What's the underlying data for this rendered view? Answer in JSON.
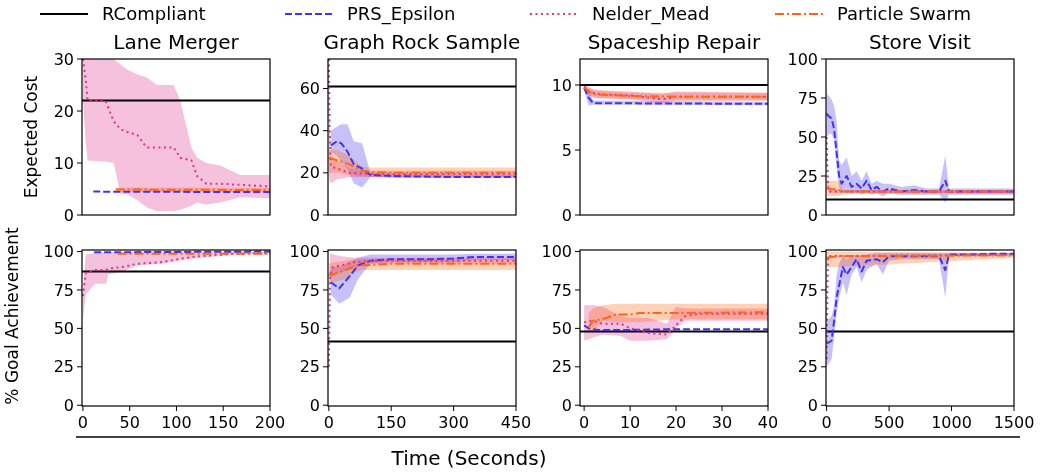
{
  "chart_data": [
    {
      "type": "line",
      "title": "Lane Merger",
      "ylabel": "Expected Cost",
      "legend": "top",
      "xlim": [
        -1,
        200
      ],
      "ylim": [
        0,
        30
      ],
      "yticks": [
        0,
        10,
        20,
        30
      ],
      "tick_labels": "y",
      "series": [
        {
          "name": "RCompliant",
          "color": "#000000",
          "line_style": "solid",
          "x": [
            -1,
            200
          ],
          "values": [
            22,
            22
          ]
        },
        {
          "name": "PRS_Epsilon",
          "color": "#4433ee",
          "line_style": "dashed",
          "x": [
            11,
            200
          ],
          "values": [
            4.5,
            4.4
          ]
        },
        {
          "name": "Nelder_Mead",
          "color": "#e0338a",
          "line_style": "dotted",
          "x": [
            0,
            3,
            5,
            24,
            33,
            40,
            47,
            58,
            68,
            79,
            97,
            104,
            116,
            122,
            132,
            147,
            168,
            200
          ],
          "values": [
            30,
            26,
            22,
            22,
            18,
            16.5,
            16,
            15.4,
            13,
            13,
            13,
            11,
            10.5,
            7.5,
            6,
            6,
            5.8,
            5.5
          ],
          "upper": [
            30,
            30,
            30,
            30,
            30,
            29,
            28,
            27,
            26.5,
            25,
            25,
            22,
            13,
            11,
            10,
            9.5,
            7.7,
            7.7
          ],
          "lower": [
            22,
            14,
            10.5,
            10.3,
            10,
            4,
            4,
            2.9,
            1.5,
            0.7,
            0.7,
            1,
            1.8,
            2.4,
            2,
            2.4,
            3.4,
            3.2
          ]
        },
        {
          "name": "Particle Swarm",
          "color": "#ff6611",
          "line_style": "dashdot",
          "x": [
            35,
            200
          ],
          "values": [
            4.9,
            4.8
          ],
          "upper": [
            5.3,
            5.2
          ],
          "lower": [
            4.4,
            4.4
          ]
        }
      ]
    },
    {
      "type": "line",
      "title": "Graph Rock Sample",
      "xlim": [
        -2,
        450
      ],
      "ylim": [
        0,
        74
      ],
      "yticks": [
        0,
        20,
        40,
        60
      ],
      "tick_labels": "y",
      "series": [
        {
          "color": "#000000",
          "line_style": "solid",
          "x": [
            -2,
            450
          ],
          "values": [
            61,
            61
          ]
        },
        {
          "color": "#4433ee",
          "line_style": "dashed",
          "x": [
            5,
            20,
            30,
            45,
            60,
            80,
            100,
            150,
            300,
            450
          ],
          "values": [
            33,
            35,
            34,
            30,
            24,
            22,
            19,
            18.5,
            18,
            18
          ],
          "upper": [
            40,
            42,
            43,
            43,
            35,
            34,
            20,
            19.5,
            19,
            19
          ],
          "lower": [
            30,
            28,
            25,
            22,
            15,
            13,
            18,
            17.5,
            17.5,
            17.5
          ]
        },
        {
          "color": "#e0338a",
          "line_style": "dotted",
          "x": [
            0,
            2,
            5,
            20,
            50,
            100,
            450
          ],
          "values": [
            74,
            40,
            23,
            22,
            20,
            19.5,
            19.5
          ],
          "upper": [
            74,
            45,
            28,
            26,
            22,
            21,
            21
          ],
          "lower": [
            20,
            16,
            15,
            17,
            18,
            18,
            18
          ]
        },
        {
          "color": "#ff6611",
          "line_style": "dashdot",
          "x": [
            0,
            20,
            50,
            80,
            100,
            150,
            450
          ],
          "values": [
            27,
            26,
            24,
            21,
            20.5,
            20,
            20
          ],
          "upper": [
            31,
            31,
            28,
            23,
            22.5,
            22.5,
            22.5
          ],
          "lower": [
            20,
            20,
            19,
            18.5,
            18,
            18,
            18
          ]
        }
      ]
    },
    {
      "type": "line",
      "title": "Spaceship Repair",
      "xlim": [
        -0.9,
        40
      ],
      "ylim": [
        0,
        12
      ],
      "yticks": [
        0,
        5,
        10
      ],
      "tick_labels": "y",
      "series": [
        {
          "color": "#000000",
          "line_style": "solid",
          "x": [
            -0.9,
            40
          ],
          "values": [
            10,
            10
          ]
        },
        {
          "color": "#4433ee",
          "line_style": "dashed",
          "x": [
            0,
            1,
            2,
            40
          ],
          "values": [
            9.8,
            9,
            8.6,
            8.55
          ],
          "upper": [
            9.9,
            9.6,
            8.8,
            8.7
          ],
          "lower": [
            9.6,
            8.4,
            8.5,
            8.45
          ]
        },
        {
          "color": "#e0338a",
          "line_style": "dotted",
          "x": [
            0,
            1,
            3,
            10,
            17,
            20,
            40
          ],
          "values": [
            9.9,
            9.5,
            9.3,
            9.2,
            8.9,
            9.1,
            9.1
          ],
          "upper": [
            10,
            9.8,
            9.6,
            9.5,
            9.3,
            9.5,
            9.4
          ],
          "lower": [
            9.7,
            9.2,
            9,
            8.9,
            8.6,
            8.8,
            8.8
          ]
        },
        {
          "color": "#ff6611",
          "line_style": "dashdot",
          "x": [
            0,
            2,
            10,
            20,
            40
          ],
          "values": [
            9.8,
            9.3,
            9.15,
            9.1,
            9.1
          ],
          "upper": [
            10,
            9.6,
            9.4,
            9.4,
            9.4
          ],
          "lower": [
            9.5,
            9,
            8.9,
            8.8,
            8.8
          ]
        }
      ]
    },
    {
      "type": "line",
      "title": "Store Visit",
      "xlim": [
        -5,
        1500
      ],
      "ylim": [
        0,
        100
      ],
      "yticks": [
        0,
        25,
        50,
        75,
        100
      ],
      "tick_labels": "y",
      "series": [
        {
          "color": "#000000",
          "line_style": "solid",
          "x": [
            -5,
            1500
          ],
          "values": [
            10,
            10
          ]
        },
        {
          "color": "#4433ee",
          "line_style": "dashed",
          "x": [
            0,
            20,
            40,
            60,
            80,
            100,
            120,
            160,
            200,
            240,
            280,
            320,
            360,
            400,
            450,
            500,
            600,
            700,
            800,
            900,
            950,
            980,
            1100,
            1300,
            1500
          ],
          "values": [
            65,
            63,
            62,
            55,
            40,
            25,
            20,
            25,
            18,
            20,
            17,
            22,
            16,
            18,
            15,
            17,
            15,
            16,
            15,
            15,
            22,
            15,
            15,
            15,
            15
          ],
          "upper": [
            78,
            76,
            74,
            70,
            60,
            35,
            32,
            37,
            25,
            28,
            22,
            28,
            20,
            22,
            20,
            20,
            18,
            19,
            17,
            17,
            38,
            17,
            17,
            17,
            17
          ],
          "lower": [
            50,
            52,
            52,
            48,
            30,
            18,
            15,
            16,
            14,
            15,
            13,
            15,
            13,
            14,
            12,
            14,
            13,
            13,
            13,
            13,
            8,
            13,
            13,
            13,
            13
          ]
        },
        {
          "color": "#e0338a",
          "line_style": "dotted",
          "x": [
            0,
            10,
            20,
            1500
          ],
          "values": [
            50,
            20,
            15,
            15
          ],
          "upper": [
            55,
            24,
            16,
            16
          ],
          "lower": [
            45,
            16,
            14,
            14
          ]
        },
        {
          "color": "#ff6611",
          "line_style": "dashdot",
          "x": [
            0,
            100,
            130,
            1500
          ],
          "values": [
            17,
            16,
            15,
            15
          ],
          "upper": [
            22,
            22,
            16,
            16
          ],
          "lower": [
            12,
            12,
            14,
            14
          ]
        }
      ]
    },
    {
      "type": "line",
      "ylabel": "% Goal Achievement",
      "xlim": [
        -1,
        200
      ],
      "xticks": [
        0,
        50,
        100,
        150,
        200
      ],
      "ylim": [
        -0.5,
        101
      ],
      "yticks": [
        0,
        25,
        50,
        75,
        100
      ],
      "series": [
        {
          "color": "#000000",
          "line_style": "solid",
          "x": [
            -1,
            200
          ],
          "values": [
            87,
            87
          ]
        },
        {
          "color": "#4433ee",
          "line_style": "dashed",
          "x": [
            12,
            200
          ],
          "values": [
            99.5,
            100
          ]
        },
        {
          "color": "#e0338a",
          "line_style": "dotted",
          "x": [
            0,
            3,
            13,
            25,
            27,
            43,
            58,
            83,
            111,
            125,
            140,
            161,
            200
          ],
          "values": [
            71,
            86,
            88,
            88,
            89,
            90,
            92,
            93,
            96,
            97,
            97.5,
            98.5,
            99
          ],
          "upper": [
            75,
            98,
            99,
            99.5,
            99.5,
            99.5,
            100,
            100,
            100,
            100,
            100,
            100,
            100
          ],
          "lower": [
            55,
            72,
            79,
            79,
            85,
            87,
            91,
            92,
            95,
            96,
            97,
            98,
            99
          ]
        },
        {
          "color": "#ff6611",
          "line_style": "dashdot",
          "x": [
            37,
            200
          ],
          "values": [
            98.5,
            98.5
          ]
        }
      ]
    },
    {
      "type": "line",
      "xlabel": "Time (Seconds)",
      "xlim": [
        -2,
        450
      ],
      "xticks": [
        0,
        150,
        300,
        450
      ],
      "ylim": [
        -0.5,
        101
      ],
      "yticks": [
        0,
        25,
        50,
        75,
        100
      ],
      "series": [
        {
          "color": "#000000",
          "line_style": "solid",
          "x": [
            -2,
            450
          ],
          "values": [
            41.5,
            41.5
          ]
        },
        {
          "color": "#4433ee",
          "line_style": "dashed",
          "x": [
            5,
            25,
            50,
            70,
            100,
            150,
            250,
            300,
            350,
            450
          ],
          "values": [
            80,
            76,
            84,
            91,
            94,
            95,
            95,
            95.5,
            96.5,
            96.5
          ],
          "upper": [
            90,
            90,
            93,
            96,
            98,
            98,
            98,
            98,
            98.5,
            98.5
          ],
          "lower": [
            72,
            66,
            70,
            82,
            92,
            93,
            93,
            93,
            94.5,
            94.5
          ]
        },
        {
          "color": "#e0338a",
          "line_style": "dotted",
          "x": [
            0,
            3,
            10,
            30,
            60,
            100,
            450
          ],
          "values": [
            25,
            85,
            90,
            91,
            93,
            94,
            94
          ],
          "upper": [
            30,
            99,
            98,
            97,
            96,
            96,
            96
          ],
          "lower": [
            20,
            80,
            85,
            86,
            90,
            92,
            92
          ]
        },
        {
          "color": "#ff6611",
          "line_style": "dashdot",
          "x": [
            0,
            10,
            40,
            60,
            80,
            150,
            450
          ],
          "values": [
            85,
            85,
            88,
            90,
            91,
            92,
            92
          ],
          "upper": [
            92,
            93,
            94,
            95,
            95,
            95,
            95
          ],
          "lower": [
            78,
            80,
            82,
            86,
            88,
            88,
            88
          ]
        }
      ]
    },
    {
      "type": "line",
      "xlim": [
        -0.9,
        40
      ],
      "xticks": [
        0,
        10,
        20,
        30,
        40
      ],
      "ylim": [
        -0.5,
        101
      ],
      "yticks": [
        0,
        25,
        50,
        75,
        100
      ],
      "series": [
        {
          "color": "#000000",
          "line_style": "solid",
          "x": [
            -0.9,
            40
          ],
          "values": [
            48,
            48
          ]
        },
        {
          "color": "#4433ee",
          "line_style": "dashed",
          "x": [
            0,
            1,
            3,
            10,
            20,
            40
          ],
          "values": [
            52,
            50,
            49,
            49,
            49.5,
            49.5
          ]
        },
        {
          "color": "#e0338a",
          "line_style": "dotted",
          "x": [
            0,
            2,
            4,
            8,
            10,
            14,
            18,
            20,
            22,
            25,
            40
          ],
          "values": [
            54,
            55,
            53,
            53,
            50,
            47,
            46,
            52,
            58,
            59.5,
            59.5
          ],
          "upper": [
            65,
            65,
            64,
            58,
            57,
            57,
            53,
            64,
            63,
            63,
            63
          ],
          "lower": [
            42,
            44,
            46,
            45,
            42,
            42,
            43,
            50,
            55,
            55,
            55
          ]
        },
        {
          "color": "#ff6611",
          "line_style": "dashdot",
          "x": [
            1,
            2,
            4,
            7,
            10,
            12,
            20,
            40
          ],
          "values": [
            51,
            55,
            56,
            59,
            59,
            60,
            60,
            60.5
          ],
          "upper": [
            60,
            63,
            65,
            66,
            66,
            66,
            66,
            66
          ],
          "lower": [
            48,
            48,
            55,
            54,
            54,
            54,
            56,
            56
          ]
        }
      ]
    },
    {
      "type": "line",
      "xlim": [
        -5,
        1500
      ],
      "xticks": [
        0,
        500,
        1000,
        1500
      ],
      "ylim": [
        -0.5,
        101
      ],
      "yticks": [
        0,
        25,
        50,
        75,
        100
      ],
      "series": [
        {
          "color": "#000000",
          "line_style": "solid",
          "x": [
            -5,
            1500
          ],
          "values": [
            48,
            48
          ]
        },
        {
          "color": "#4433ee",
          "line_style": "dashed",
          "x": [
            0,
            40,
            60,
            80,
            100,
            130,
            160,
            200,
            240,
            280,
            320,
            400,
            450,
            500,
            600,
            700,
            800,
            900,
            950,
            980,
            1100,
            1300,
            1500
          ],
          "values": [
            40,
            42,
            55,
            70,
            78,
            90,
            85,
            90,
            95,
            87,
            94,
            95,
            93,
            97,
            97,
            97,
            97,
            97,
            88,
            98,
            98,
            98.5,
            98.5
          ],
          "upper": [
            55,
            58,
            65,
            85,
            92,
            97,
            95,
            97,
            98,
            97,
            98,
            99,
            99,
            99,
            99,
            99,
            99,
            99,
            99,
            99,
            99,
            99,
            99
          ],
          "lower": [
            25,
            30,
            45,
            60,
            70,
            80,
            72,
            85,
            90,
            80,
            88,
            92,
            85,
            94,
            95,
            95,
            95,
            95,
            70,
            97,
            97,
            97,
            98
          ]
        },
        {
          "color": "#e0338a",
          "line_style": "dotted",
          "x": [
            0,
            10,
            1500
          ],
          "values": [
            30,
            97,
            98
          ]
        },
        {
          "color": "#ff6611",
          "line_style": "dashdot",
          "x": [
            0,
            100,
            1500
          ],
          "values": [
            96,
            97,
            97.5
          ],
          "upper": [
            100,
            100,
            99
          ],
          "lower": [
            90,
            90,
            96
          ]
        }
      ]
    }
  ]
}
